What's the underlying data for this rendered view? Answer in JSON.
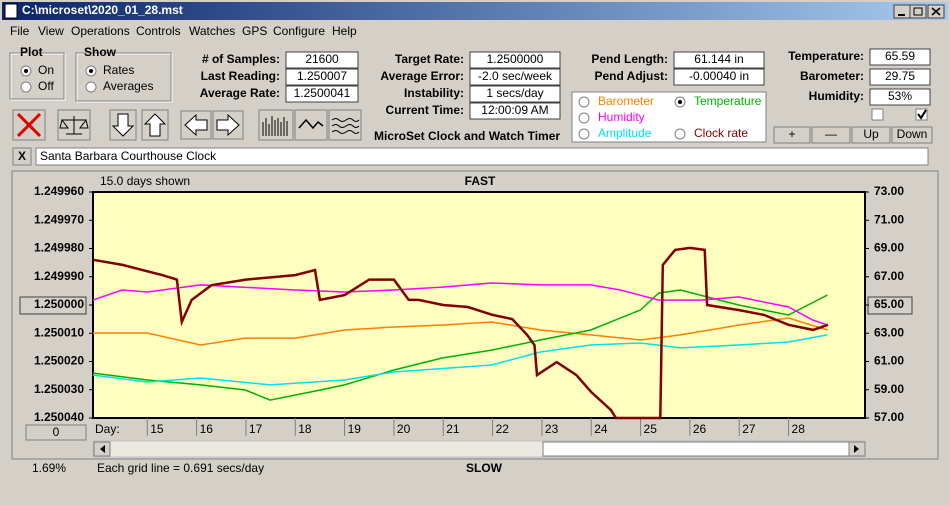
{
  "window": {
    "title": "C:\\microset\\2020_01_28.mst"
  },
  "menu": [
    "File",
    "View",
    "Operations",
    "Controls",
    "Watches",
    "GPS",
    "Configure",
    "Help"
  ],
  "plot_group": {
    "label": "Plot",
    "options": [
      "On",
      "Off"
    ]
  },
  "show_group": {
    "label": "Show",
    "options": [
      "Rates",
      "Averages"
    ]
  },
  "fields": [
    {
      "label": "# of Samples:",
      "value": "21600"
    },
    {
      "label": "Last Reading:",
      "value": "1.250007"
    },
    {
      "label": "Average Rate:",
      "value": "1.2500041"
    },
    {
      "label": "Target Rate:",
      "value": "1.2500000"
    },
    {
      "label": "Average Error:",
      "value": "-2.0 sec/week"
    },
    {
      "label": "Instability:",
      "value": "1 secs/day"
    },
    {
      "label": "Current Time:",
      "value": "12:00:09 AM"
    },
    {
      "label": "Pend Length:",
      "value": "61.144 in"
    },
    {
      "label": "Pend Adjust:",
      "value": "-0.00040 in"
    },
    {
      "label": "Temperature:",
      "value": "65.59"
    },
    {
      "label": "Barometer:",
      "value": "29.75"
    },
    {
      "label": "Humidity:",
      "value": "53%"
    }
  ],
  "app_title": "MicroSet Clock and Watch Timer",
  "buttons": [
    "+",
    "—",
    "Up",
    "Down"
  ],
  "clock_name": "Santa Barbara Courthouse Clock",
  "close_button": "X",
  "chart_data": {
    "type": "line",
    "days_shown": "15.0 days shown",
    "top_label": "FAST",
    "bottom_label": "SLOW",
    "x_label": "Day:",
    "grid_note": "Each grid line = 0.691 secs/day",
    "percent": "1.69%",
    "offset_button": "0",
    "xlim": [
      13.9,
      29.55
    ],
    "xticks": [
      15,
      16,
      17,
      18,
      19,
      20,
      21,
      22,
      23,
      24,
      25,
      26,
      27,
      28
    ],
    "ylim": [
      1.25004,
      1.24996
    ],
    "yticks": [
      {
        "value": 1.24996,
        "label": "1.249960"
      },
      {
        "value": 1.24997,
        "label": "1.249970"
      },
      {
        "value": 1.24998,
        "label": "1.249980"
      },
      {
        "value": 1.24999,
        "label": "1.249990"
      },
      {
        "value": 1.25,
        "label": "1.250000"
      },
      {
        "value": 1.25001,
        "label": "1.250010"
      },
      {
        "value": 1.25002,
        "label": "1.250020"
      },
      {
        "value": 1.25003,
        "label": "1.250030"
      },
      {
        "value": 1.25004,
        "label": "1.250040"
      }
    ],
    "y2lim": [
      57,
      73
    ],
    "y2ticks": [
      {
        "value": 73,
        "label": "73.00"
      },
      {
        "value": 71,
        "label": "71.00"
      },
      {
        "value": 69,
        "label": "69.00"
      },
      {
        "value": 67,
        "label": "67.00"
      },
      {
        "value": 65,
        "label": "65.00"
      },
      {
        "value": 63,
        "label": "63.00"
      },
      {
        "value": 61,
        "label": "61.00"
      },
      {
        "value": 59,
        "label": "59.00"
      },
      {
        "value": 57,
        "label": "57.00"
      }
    ],
    "highlight_ytick": 4,
    "highlight_y2tick": 4,
    "legend_selected": 1,
    "grid": false,
    "series": [
      {
        "name": "Barometer",
        "color": "#ff8000",
        "axis": "y2",
        "x": [
          13.9,
          15,
          16.08,
          16.99,
          18,
          19,
          20,
          20.98,
          21.98,
          22.97,
          23.99,
          25,
          25.81,
          26.99,
          28,
          28.79
        ],
        "values": [
          63.02,
          63.02,
          62.17,
          62.66,
          62.66,
          63.23,
          63.44,
          63.58,
          63.8,
          63.23,
          62.88,
          62.52,
          62.88,
          63.58,
          64.08,
          63.23
        ]
      },
      {
        "name": "Temperature",
        "color": "#00b000",
        "axis": "y2",
        "x": [
          13.9,
          15,
          16.08,
          16.99,
          17.49,
          18.51,
          19,
          20,
          20.98,
          21.98,
          22.97,
          23.99,
          25,
          25.37,
          25.81,
          26.99,
          28,
          28.79
        ],
        "values": [
          60.18,
          59.69,
          59.34,
          58.98,
          58.27,
          58.98,
          59.34,
          60.4,
          61.25,
          61.81,
          62.52,
          63.23,
          64.65,
          65.85,
          66.06,
          65,
          64.29,
          65.71
        ]
      },
      {
        "name": "Humidity",
        "color": "#ff00ff",
        "axis": "y2",
        "x": [
          13.9,
          14.49,
          15,
          16.08,
          18,
          19,
          20,
          20.98,
          21.98,
          22.97,
          23.99,
          24.59,
          25.37,
          26.22,
          26.99,
          28,
          28.49,
          28.79
        ],
        "values": [
          65.35,
          66.06,
          65.92,
          66.42,
          66.06,
          65.92,
          66.06,
          66.27,
          66.56,
          66.42,
          66.42,
          66.06,
          65.35,
          65.35,
          65.57,
          64.86,
          63.94,
          63.58
        ]
      },
      {
        "name": "Amplitude",
        "color": "#00e0f0",
        "axis": "y2",
        "x": [
          13.9,
          15,
          16.08,
          17.49,
          19,
          20,
          21.98,
          22.97,
          23.99,
          25,
          25.81,
          26.99,
          28,
          28.79
        ],
        "values": [
          60.04,
          59.55,
          59.83,
          59.34,
          59.69,
          60.26,
          60.75,
          61.67,
          62.17,
          62.31,
          61.96,
          62.17,
          62.38,
          62.88
        ]
      },
      {
        "name": "Clock rate",
        "color": "#800000",
        "axis": "y",
        "x": [
          13.9,
          14.5,
          15.3,
          15.6,
          15.7,
          15.9,
          16.3,
          17,
          18,
          18.4,
          18.5,
          19,
          19.5,
          20,
          20.3,
          20.5,
          21,
          21.5,
          22,
          22.4,
          22.7,
          22.85,
          22.9,
          23.3,
          23.7,
          24,
          24.4,
          24.5,
          25.4,
          25.45,
          25.7,
          26,
          26.3,
          26.35,
          27,
          27.5,
          28,
          28.5,
          28.8
        ],
        "values": [
          1.249984,
          1.2499858,
          1.2499894,
          1.249991,
          1.250006,
          1.2499982,
          1.249993,
          1.249991,
          1.2499894,
          1.2499876,
          1.2499982,
          1.2499965,
          1.249991,
          1.249991,
          1.2499982,
          1.2499982,
          1.25,
          1.2500007,
          1.2500035,
          1.250005,
          1.2500106,
          1.2500142,
          1.2500248,
          1.2500202,
          1.2500248,
          1.2500308,
          1.2500372,
          1.25004,
          1.25004,
          1.2499858,
          1.2499805,
          1.2499798,
          1.2499805,
          1.25,
          1.2500018,
          1.2500035,
          1.250007,
          1.2500088,
          1.250007
        ]
      }
    ]
  }
}
